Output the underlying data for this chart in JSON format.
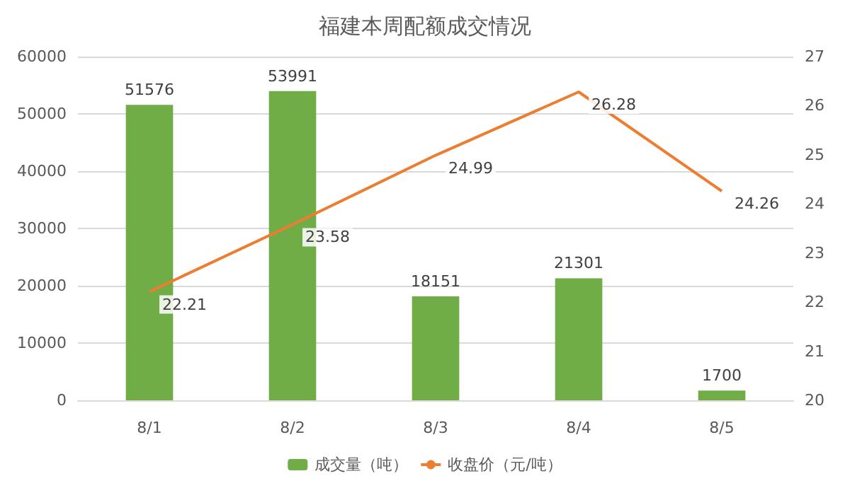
{
  "chart_data": {
    "type": "bar",
    "title": "福建本周配额成交情况",
    "categories": [
      "8/1",
      "8/2",
      "8/3",
      "8/4",
      "8/5"
    ],
    "series": [
      {
        "name": "成交量（吨）",
        "color": "#70ad47",
        "values": [
          51576,
          53991,
          18151,
          21301,
          1700
        ]
      },
      {
        "name": "收盘价（元/吨）",
        "type": "line",
        "axis": "y2",
        "color": "#ed7d31",
        "values": [
          22.21,
          23.58,
          24.99,
          26.28,
          24.26
        ]
      }
    ],
    "ylim": [
      0,
      60000
    ],
    "yticks": [
      0,
      10000,
      20000,
      30000,
      40000,
      50000,
      60000
    ],
    "y2lim": [
      20,
      27
    ],
    "y2ticks": [
      20,
      21,
      22,
      23,
      24,
      25,
      26,
      27
    ],
    "data_labels": true,
    "grid": "y",
    "legend": "bottom",
    "marker": "none",
    "line_style": "solid"
  }
}
